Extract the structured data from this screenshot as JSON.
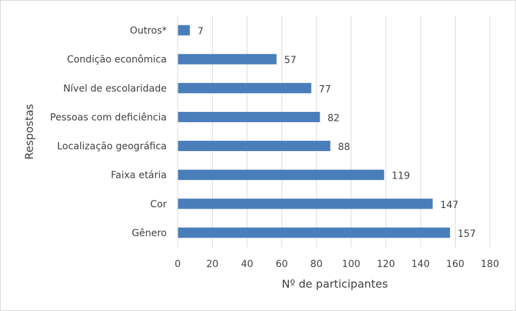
{
  "chart_data": {
    "type": "bar",
    "orientation": "horizontal",
    "title": "",
    "categories": [
      "Outros*",
      "Condição econômica",
      "Nível de escolaridade",
      "Pessoas com deficiência",
      "Localização geográfica",
      "Faixa etária",
      "Cor",
      "Gênero"
    ],
    "values": [
      7,
      57,
      77,
      82,
      88,
      119,
      147,
      157
    ],
    "xlabel": "Nº de participantes",
    "ylabel": "Respostas",
    "xlim": [
      0,
      180
    ],
    "xticks": [
      0,
      20,
      40,
      60,
      80,
      100,
      120,
      140,
      160,
      180
    ],
    "grid": "vertical",
    "legend": "none",
    "bar_color": "#4a7ebb"
  }
}
